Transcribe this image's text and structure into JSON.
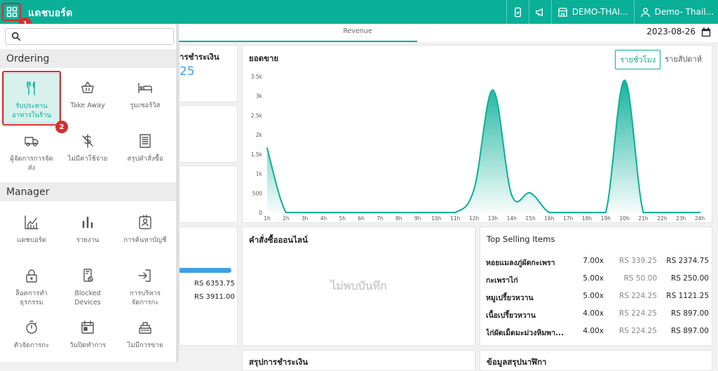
{
  "header": {
    "title": "แดชบอร์ด",
    "store": "DEMO-THAI...",
    "user": "Demo- Thail..."
  },
  "annotations": {
    "step1": "1",
    "step2": "2"
  },
  "sidebar": {
    "search_placeholder": "",
    "sections": [
      {
        "title": "Ordering"
      },
      {
        "title": "Manager"
      }
    ],
    "ordering": [
      {
        "label": "รับประทาน\nอาหารในร้าน",
        "icon": "fork-knife-icon"
      },
      {
        "label": "Take Away",
        "icon": "basket-icon"
      },
      {
        "label": "รูมเซอร์วิส",
        "icon": "bed-icon"
      },
      {
        "label": "ผู้จัดการการจัด\nส่ง",
        "icon": "truck-icon"
      },
      {
        "label": "ไม่มีค่าใช้จ่าย",
        "icon": "no-charge-icon"
      },
      {
        "label": "สรุปคำสั่งซื้อ",
        "icon": "receipt-icon"
      }
    ],
    "manager": [
      {
        "label": "แดชบอร์ด",
        "icon": "line-chart-icon"
      },
      {
        "label": "รายงาน",
        "icon": "bar-chart-icon"
      },
      {
        "label": "การค้นหาบัญชี",
        "icon": "account-card-icon"
      },
      {
        "label": "ล็อคการทำ\nธุรกรรม",
        "icon": "lock-icon"
      },
      {
        "label": "Blocked\nDevices",
        "icon": "blocked-device-icon"
      },
      {
        "label": "การบริหาร\nจัดการกะ",
        "icon": "sign-in-icon"
      },
      {
        "label": "ตัวจัดการกะ",
        "icon": "stopwatch-icon"
      },
      {
        "label": "วันปิดทำการ",
        "icon": "calendar-icon"
      },
      {
        "label": "ไม่มีการขาย",
        "icon": "cash-register-icon"
      }
    ]
  },
  "tabs": {
    "revenue": "Revenue"
  },
  "date": "2023-08-26",
  "payment_card": {
    "title": "ารชำระเงิน",
    "value": "25"
  },
  "sales_card": {
    "title": "ยอดขาย",
    "toggle_hourly": "รายชั่วโมง",
    "toggle_weekly": "รายสัปดาห์"
  },
  "side_values": {
    "v1": "RS 6353.75",
    "v2": "RS 3911.00",
    "bar_fill": 1.0
  },
  "online_orders": {
    "title": "คำสั่งซื้อออนไลน์",
    "empty": "ไม่พบบันทึก"
  },
  "top_selling": {
    "title": "Top Selling Items",
    "rows": [
      {
        "name": "หอยแมลงภู่ผัดกะเพรา",
        "qty": "7.00x",
        "price": "RS 339.25",
        "total": "RS 2374.75"
      },
      {
        "name": "กะเพราไก่",
        "qty": "5.00x",
        "price": "RS 50.00",
        "total": "RS 250.00"
      },
      {
        "name": "หมูเปรี้ยวหวาน",
        "qty": "5.00x",
        "price": "RS 224.25",
        "total": "RS 1121.25"
      },
      {
        "name": "เนื้อเปรี้ยวหวาน",
        "qty": "4.00x",
        "price": "RS 224.25",
        "total": "RS 897.00"
      },
      {
        "name": "ไก่ผัดเม็ดมะม่วงหิมพา...",
        "qty": "4.00x",
        "price": "RS 224.25",
        "total": "RS 897.00"
      }
    ]
  },
  "bottom_cards": {
    "left": "สรุปการชำระเงิน",
    "right": "ข้อมูลสรุปนาฬิกา"
  },
  "chart_data": {
    "type": "area",
    "x": [
      "1h",
      "2h",
      "3h",
      "4h",
      "5h",
      "6h",
      "7h",
      "8h",
      "9h",
      "10h",
      "11h",
      "12h",
      "13h",
      "14h",
      "15h",
      "16h",
      "17h",
      "18h",
      "19h",
      "20h",
      "21h",
      "22h",
      "23h",
      "24h"
    ],
    "values": [
      1650,
      0,
      0,
      0,
      0,
      0,
      0,
      0,
      0,
      0,
      0,
      600,
      3150,
      450,
      500,
      0,
      0,
      0,
      0,
      3400,
      0,
      0,
      0,
      0
    ],
    "yticks": [
      "0",
      "500",
      "1k",
      "1.5k",
      "2k",
      "2.5k",
      "3k",
      "3.5k"
    ],
    "ylim": [
      0,
      3500
    ],
    "color": "#0aaf98"
  }
}
